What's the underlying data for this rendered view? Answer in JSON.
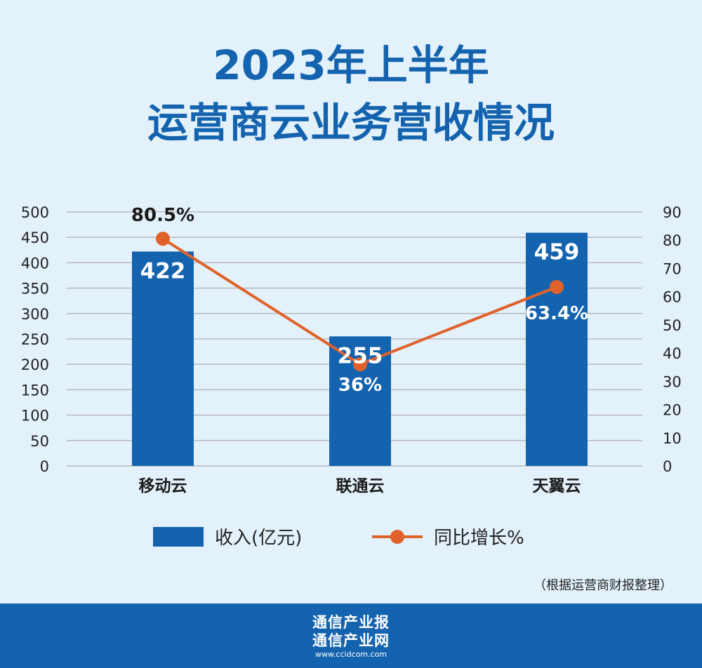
{
  "title": {
    "line1": "2023年上半年",
    "line2": "运营商云业务营收情况"
  },
  "chart_data": {
    "type": "bar",
    "categories": [
      "移动云",
      "联通云",
      "天翼云"
    ],
    "series": [
      {
        "name": "收入(亿元)",
        "type": "bar",
        "axis": "left",
        "values": [
          422,
          255,
          459
        ],
        "labels": [
          "422",
          "255",
          "459"
        ],
        "color": "#1463ae"
      },
      {
        "name": "同比增长%",
        "type": "line",
        "axis": "right",
        "values": [
          80.5,
          36,
          63.4
        ],
        "labels": [
          "80.5%",
          "36%",
          "63.4%"
        ],
        "color": "#e0622a"
      }
    ],
    "y_left": {
      "lim": [
        0,
        500
      ],
      "ticks": [
        "0",
        "50",
        "100",
        "150",
        "200",
        "250",
        "300",
        "350",
        "400",
        "450",
        "500"
      ]
    },
    "y_right": {
      "lim": [
        0,
        90
      ],
      "ticks": [
        "0",
        "10",
        "20",
        "30",
        "40",
        "50",
        "60",
        "70",
        "80",
        "90"
      ]
    },
    "grid": true,
    "legend_position": "bottom"
  },
  "legend": {
    "bar_label": "收入(亿元)",
    "line_label": "同比增长%"
  },
  "source_note": "（根据运营商财报整理）",
  "footer": {
    "brand_line1": "通信产业报",
    "brand_line2": "通信产业网",
    "url": "www.ccidcom.com"
  },
  "colors": {
    "background": "#e3f1fb",
    "bar": "#1463ae",
    "line": "#e0622a",
    "title": "#1463ae",
    "footer": "#1463ae"
  }
}
